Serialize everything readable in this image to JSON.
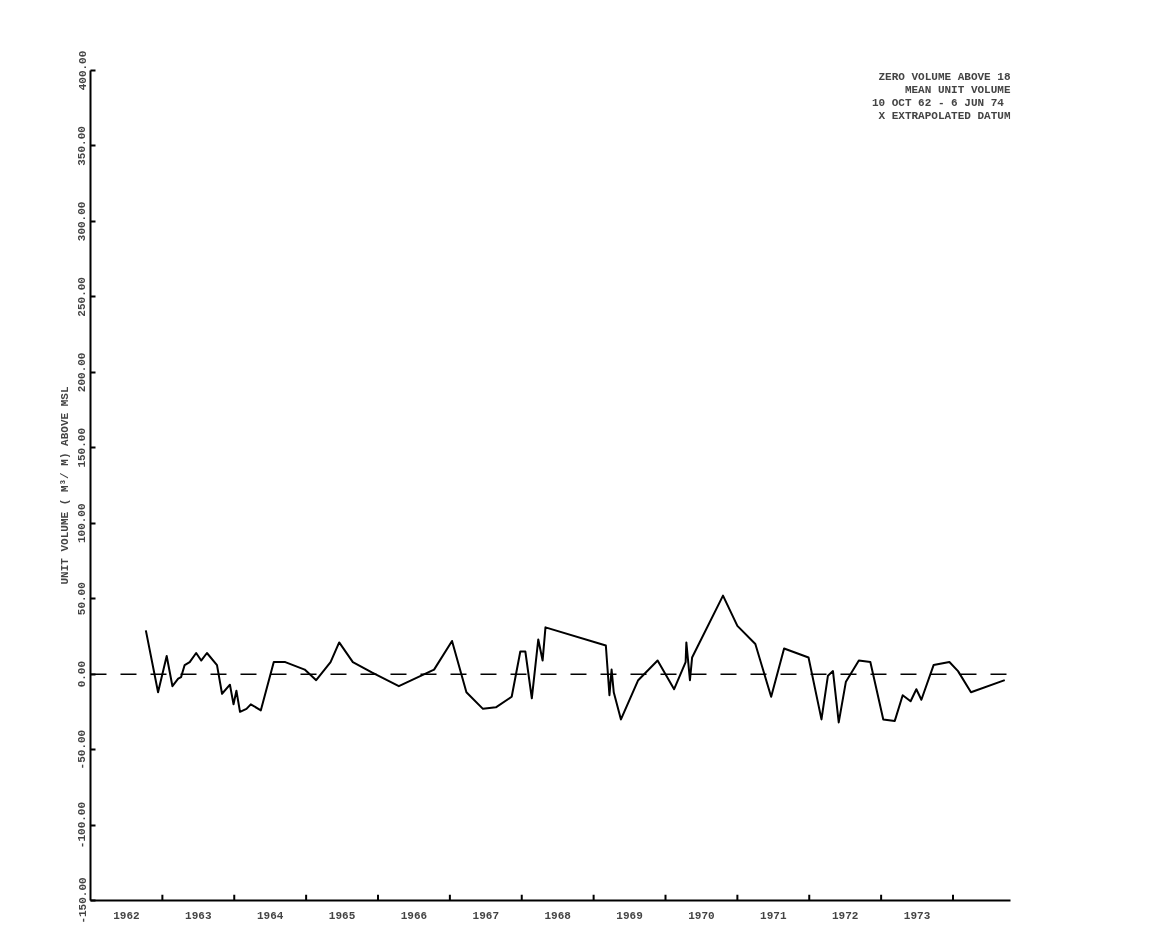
{
  "chart_data": {
    "type": "line",
    "ylabel": "UNIT VOLUME ( M³/ M) ABOVE MSL",
    "annotations": [
      "ZERO VOLUME ABOVE 18",
      "MEAN UNIT VOLUME",
      "10 OCT 62 -  6 JUN 74",
      "X EXTRAPOLATED DATUM"
    ],
    "xlim": [
      1962,
      1974.8
    ],
    "ylim": [
      -150,
      400
    ],
    "xticks": [
      {
        "value": 1963,
        "label": null
      },
      {
        "value": 1964,
        "label": null
      },
      {
        "value": 1965,
        "label": null
      },
      {
        "value": 1966,
        "label": null
      },
      {
        "value": 1967,
        "label": null
      },
      {
        "value": 1968,
        "label": null
      },
      {
        "value": 1969,
        "label": null
      },
      {
        "value": 1970,
        "label": null
      },
      {
        "value": 1971,
        "label": null
      },
      {
        "value": 1972,
        "label": null
      },
      {
        "value": 1973,
        "label": null
      },
      {
        "value": 1974,
        "label": null
      },
      {
        "value": 1962.5,
        "label": "1962"
      },
      {
        "value": 1963.5,
        "label": "1963"
      },
      {
        "value": 1964.5,
        "label": "1964"
      },
      {
        "value": 1965.5,
        "label": "1965"
      },
      {
        "value": 1966.5,
        "label": "1966"
      },
      {
        "value": 1967.5,
        "label": "1967"
      },
      {
        "value": 1968.5,
        "label": "1968"
      },
      {
        "value": 1969.5,
        "label": "1969"
      },
      {
        "value": 1970.5,
        "label": "1970"
      },
      {
        "value": 1971.5,
        "label": "1971"
      },
      {
        "value": 1972.5,
        "label": "1972"
      },
      {
        "value": 1973.5,
        "label": "1973"
      }
    ],
    "yticks": [
      {
        "value": -150,
        "label": "-150.00"
      },
      {
        "value": -100,
        "label": "-100.00"
      },
      {
        "value": -50,
        "label": "-50.00"
      },
      {
        "value": 0,
        "label": "0.00"
      },
      {
        "value": 50,
        "label": "50.00"
      },
      {
        "value": 100,
        "label": "100.00"
      },
      {
        "value": 150,
        "label": "150.00"
      },
      {
        "value": 200,
        "label": "200.00"
      },
      {
        "value": 250,
        "label": "250.00"
      },
      {
        "value": 300,
        "label": "300.00"
      },
      {
        "value": 350,
        "label": "350.00"
      },
      {
        "value": 400,
        "label": "400.00"
      }
    ],
    "ref_lines": [
      {
        "axis": "y",
        "value": 0,
        "label": null,
        "line_style": "dashed",
        "color": "#000000"
      }
    ],
    "grid": false,
    "marker": "none",
    "line_style": "solid",
    "series": [
      {
        "color": "#000000",
        "x": [
          1962.77,
          1962.94,
          1963.06,
          1963.14,
          1963.22,
          1963.26,
          1963.31,
          1963.38,
          1963.47,
          1963.54,
          1963.62,
          1963.76,
          1963.83,
          1963.94,
          1963.99,
          1964.03,
          1964.08,
          1964.17,
          1964.23,
          1964.37,
          1964.55,
          1964.71,
          1964.98,
          1965.14,
          1965.34,
          1965.46,
          1965.65,
          1965.92,
          1966.29,
          1966.78,
          1967.03,
          1967.23,
          1967.46,
          1967.64,
          1967.86,
          1967.98,
          1968.05,
          1968.14,
          1968.23,
          1968.29,
          1968.33,
          1969.17,
          1969.22,
          1969.25,
          1969.28,
          1969.38,
          1969.62,
          1969.89,
          1970.12,
          1970.28,
          1970.29,
          1970.34,
          1970.37,
          1970.8,
          1971.0,
          1971.25,
          1971.47,
          1971.65,
          1971.99,
          1972.17,
          1972.26,
          1972.33,
          1972.41,
          1972.51,
          1972.69,
          1972.85,
          1973.03,
          1973.19,
          1973.3,
          1973.41,
          1973.49,
          1973.56,
          1973.73,
          1973.95,
          1974.07,
          1974.25,
          1974.72
        ],
        "values": [
          29,
          -12,
          12,
          -8,
          -3,
          -2,
          6,
          8,
          14,
          9,
          14,
          6,
          -13,
          -7,
          -20,
          -11,
          -25,
          -23,
          -20,
          -24,
          8,
          8,
          3,
          -4,
          8,
          21,
          8,
          1,
          -8,
          3,
          22,
          -12,
          -23,
          -22,
          -15,
          15,
          15,
          -16,
          23,
          9,
          31,
          19,
          -14,
          3,
          -12,
          -30,
          -4,
          9,
          -10,
          8,
          21,
          -4,
          11,
          52,
          32,
          20,
          -15,
          17,
          11,
          -30,
          -1,
          2,
          -32,
          -5,
          9,
          8,
          -30,
          -31,
          -14,
          -18,
          -10,
          -17,
          6,
          8,
          2,
          -12,
          -4
        ]
      }
    ]
  }
}
